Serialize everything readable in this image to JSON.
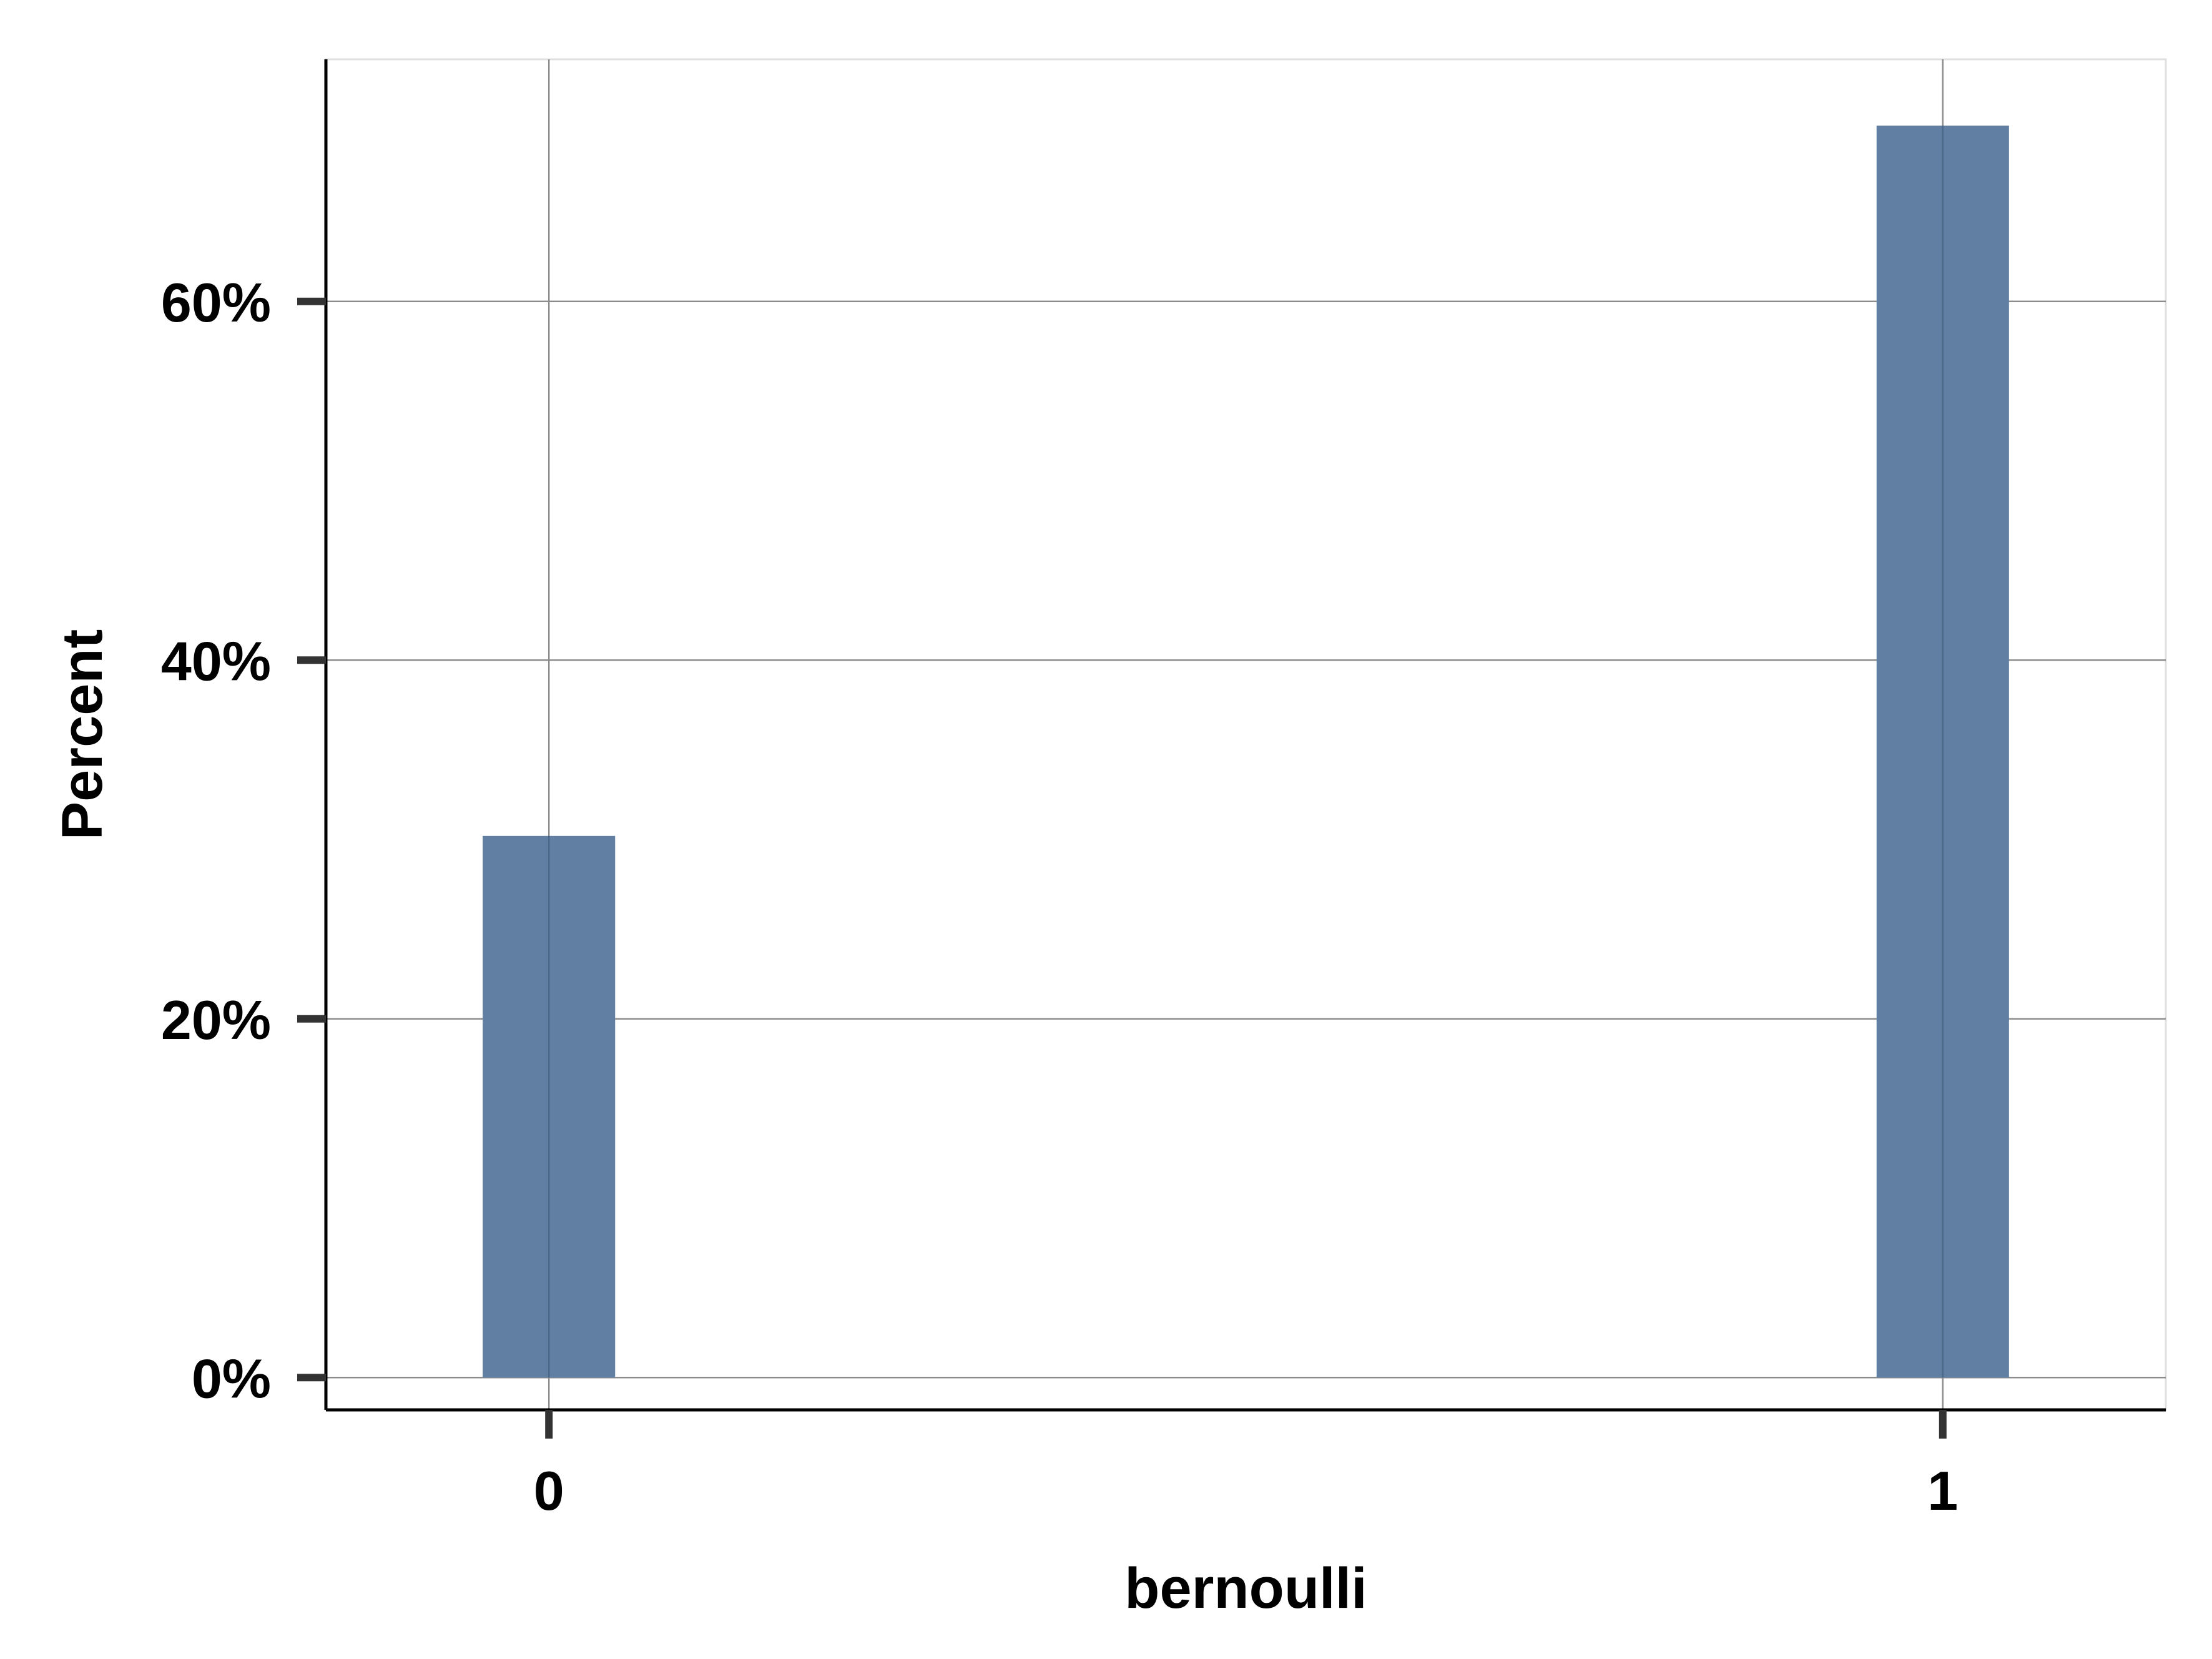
{
  "chart_data": {
    "type": "bar",
    "categories": [
      "0",
      "1"
    ],
    "x": [
      0,
      1
    ],
    "values": [
      30.2,
      69.8
    ],
    "value_unit": "percent",
    "xlabel": "bernoulli",
    "ylabel": "Percent",
    "xlim": [
      -0.16,
      1.16
    ],
    "ylim": [
      -1.8,
      73.5
    ],
    "x_ticks": [
      0,
      1
    ],
    "x_tick_labels": [
      "0",
      "1"
    ],
    "y_ticks": [
      0,
      20,
      40,
      60
    ],
    "y_tick_labels": [
      "0%",
      "20%",
      "40%",
      "60%"
    ],
    "bar_width": 0.095,
    "grid": true,
    "legend": "none",
    "colors": {
      "bar": "#607FA3",
      "grid": "#8C8C8C",
      "axis": "#000000",
      "tick_marks": "#333333",
      "panel_border": "#E0E0E0",
      "background": "#FFFFFF"
    }
  }
}
